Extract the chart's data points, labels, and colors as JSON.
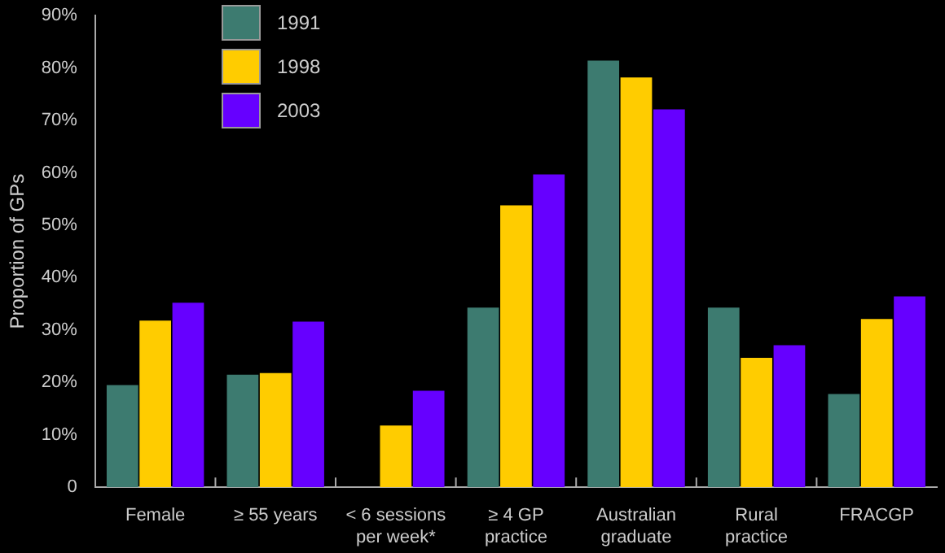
{
  "chart_data": {
    "type": "bar",
    "ylabel": "Proportion of GPs",
    "categories": [
      "Female",
      "≥ 55 years",
      "< 6 sessions per week*",
      "≥ 4 GP practice",
      "Australian graduate",
      "Rural practice",
      "FRACGP"
    ],
    "series": [
      {
        "name": "1991",
        "color": "#3d7b70",
        "values": [
          19.5,
          21.5,
          null,
          34.3,
          81.4,
          34.3,
          17.8
        ]
      },
      {
        "name": "1998",
        "color": "#ffcc00",
        "values": [
          31.8,
          21.8,
          11.8,
          53.8,
          78.2,
          24.7,
          32.1
        ]
      },
      {
        "name": "2003",
        "color": "#6600ff",
        "values": [
          35.2,
          31.6,
          18.4,
          59.7,
          72.1,
          27.1,
          36.4
        ]
      }
    ],
    "ylim": [
      0,
      90
    ],
    "yticks": [
      0,
      {
        "value": 10,
        "label": "10%"
      },
      {
        "value": 20,
        "label": "20%"
      },
      {
        "value": 30,
        "label": "30%"
      },
      {
        "value": 40,
        "label": "40%"
      },
      {
        "value": 50,
        "label": "50%"
      },
      {
        "value": 60,
        "label": "60%"
      },
      {
        "value": 70,
        "label": "70%"
      },
      {
        "value": 80,
        "label": "80%"
      },
      {
        "value": 90,
        "label": "90%"
      }
    ],
    "legend": "top left",
    "grid": false
  }
}
